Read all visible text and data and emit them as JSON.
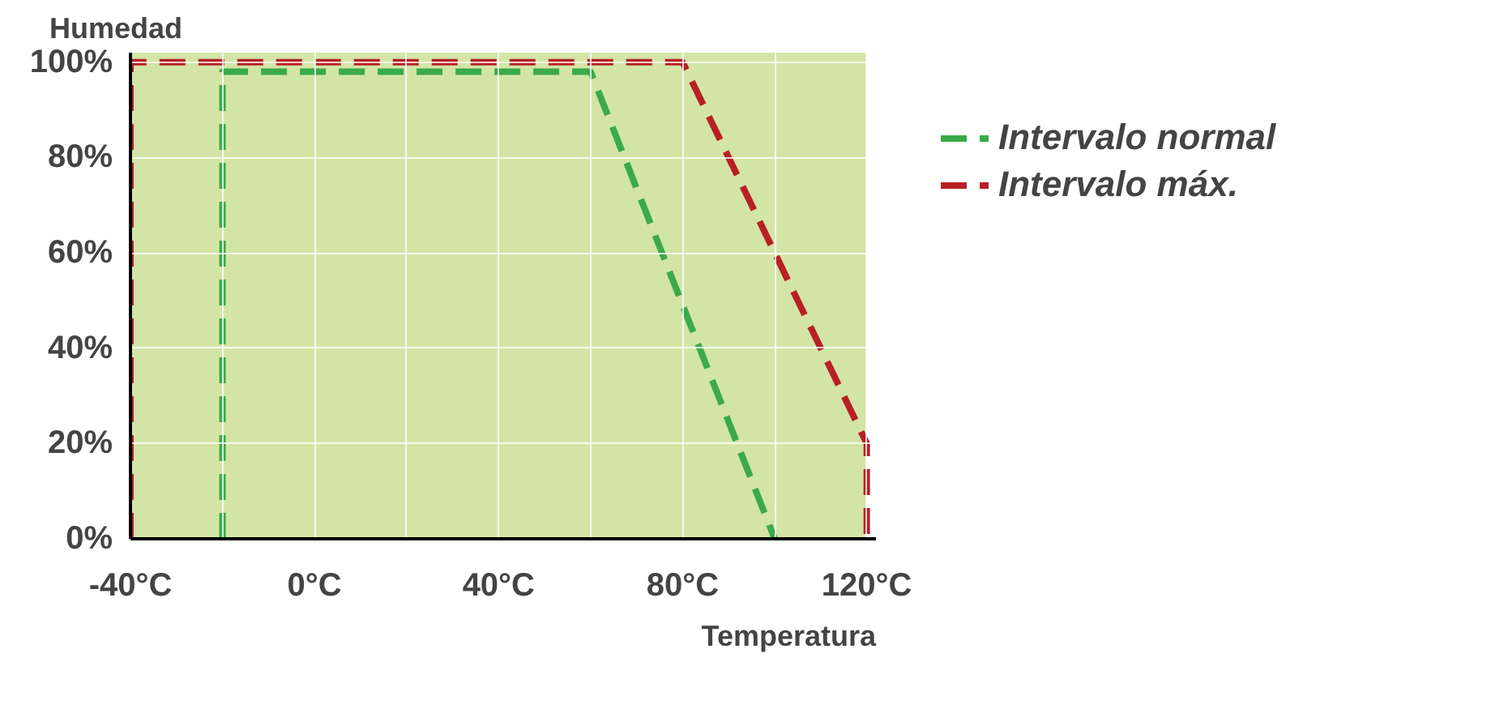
{
  "chart_data": {
    "type": "line",
    "xlabel": "Temperatura",
    "ylabel": "Humedad",
    "series": [
      {
        "name": "Intervalo normal",
        "color": "#3aaa4a",
        "x": [
          -20,
          -20,
          60,
          100
        ],
        "values": [
          0,
          98,
          98,
          0
        ]
      },
      {
        "name": "Intervalo máx.",
        "color": "#b82025",
        "x": [
          -40,
          -40,
          80,
          120,
          120
        ],
        "values": [
          0,
          100,
          100,
          20,
          0
        ]
      }
    ],
    "bands": [
      {
        "axis": "x",
        "from": -40,
        "to": 120,
        "color": "#d3e5a6"
      }
    ],
    "xlim": [
      -40,
      122
    ],
    "ylim": [
      0,
      102
    ],
    "xticks": [
      {
        "value": -40,
        "label": "-40°C"
      },
      {
        "value": -20,
        "label": null
      },
      {
        "value": 0,
        "label": "0°C"
      },
      {
        "value": 20,
        "label": null
      },
      {
        "value": 40,
        "label": "40°C"
      },
      {
        "value": 60,
        "label": null
      },
      {
        "value": 80,
        "label": "80°C"
      },
      {
        "value": 100,
        "label": null
      },
      {
        "value": 120,
        "label": "120°C"
      }
    ],
    "yticks": [
      {
        "value": 0,
        "label": "0%"
      },
      {
        "value": 20,
        "label": "20%"
      },
      {
        "value": 40,
        "label": "40%"
      },
      {
        "value": 60,
        "label": "60%"
      },
      {
        "value": 80,
        "label": "80%"
      },
      {
        "value": 100,
        "label": "100%"
      }
    ],
    "grid": true,
    "legend": "right",
    "line_style": "dashed",
    "marker": "none"
  }
}
